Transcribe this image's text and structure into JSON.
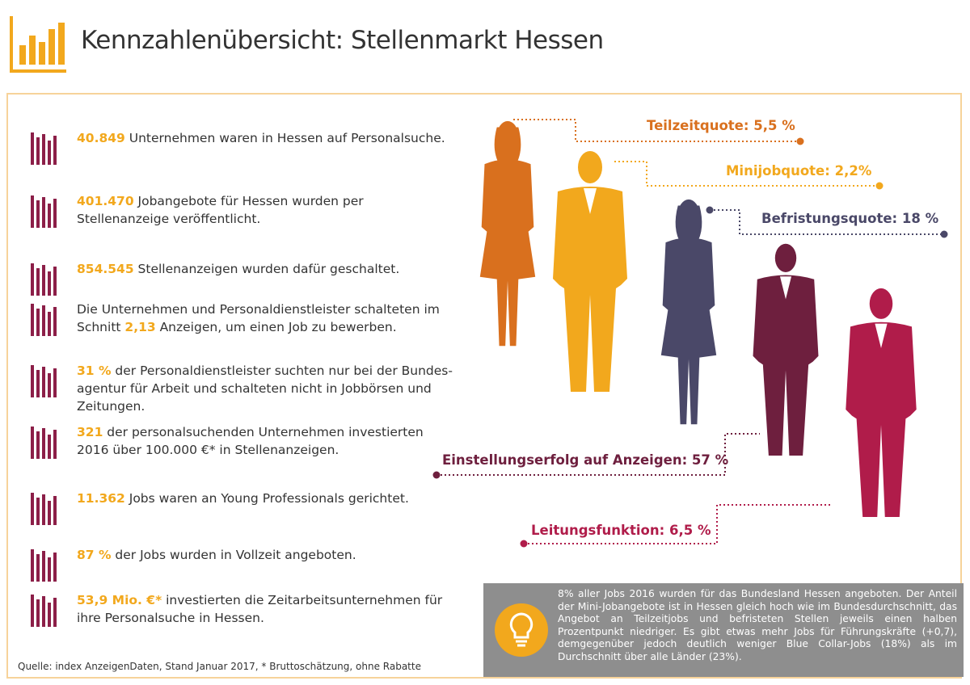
{
  "header": {
    "title": "Kennzahlenübersicht: Stellenmarkt Hessen"
  },
  "items": [
    {
      "highlight": "40.849",
      "after": " Unternehmen waren in Hessen auf Personalsuche."
    },
    {
      "highlight": "401.470",
      "after": " Jobangebote für Hessen wurden per Stellenanzeige veröffentlicht."
    },
    {
      "highlight": "854.545",
      "after": " Stellenanzeigen wurden dafür geschaltet."
    },
    {
      "before": "Die Unternehmen und Personaldienstleister schalteten im Schnitt ",
      "highlight": "2,13",
      "after": " Anzeigen, um einen Job zu bewerben."
    },
    {
      "highlight": "31 %",
      "after": " der Personaldienstleister suchten nur bei der Bundes­agentur für Arbeit und schalteten nicht in Jobbörsen und Zeitungen."
    },
    {
      "highlight": "321",
      "after": " der personalsuchenden Unternehmen investierten 2016 über 100.000 €* in Stellenanzeigen."
    },
    {
      "highlight": "11.362",
      "after": " Jobs waren an Young Professionals gerichtet."
    },
    {
      "highlight": "87 %",
      "after": " der Jobs wurden in Vollzeit angeboten."
    },
    {
      "highlight": "53,9 Mio. €*",
      "after": " investierten die Zeitarbeitsunternehmen für ihre Personalsuche in Hessen."
    }
  ],
  "quotes": [
    "Teilzeitquote: 5,5 %",
    "Minijobquote: 2,2%",
    "Befristungsquote: 18 %",
    "Einstellungserfolg auf Anzeigen: 57 %",
    "Leitungsfunktion: 6,5 %"
  ],
  "info_box": {
    "text": "8% aller Jobs 2016 wurden für das Bundesland Hessen angeboten. Der Anteil der Mini-Jobangebote ist in Hessen gleich hoch wie im Bundes­durchschnitt, das Angebot an Teilzeitjobs und befristeten Stellen jeweils einen halben Prozentpunkt niedriger. Es gibt etwas mehr Jobs für Füh­rungskräfte (+0,7), demgegenüber jedoch deutlich weniger Blue Collar-Jobs (18%) als im Durchschnitt über alle Länder (23%)."
  },
  "source": "Quelle: index AnzeigenDaten, Stand Januar 2017, * Bruttoschätzung, ohne Rabatte"
}
